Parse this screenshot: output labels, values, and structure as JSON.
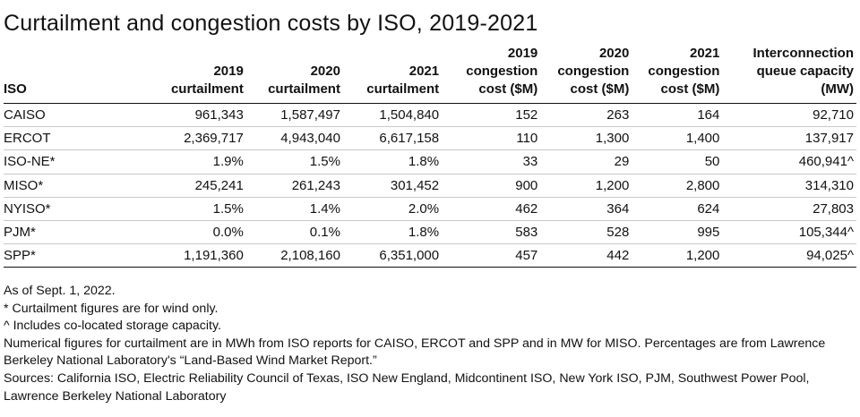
{
  "title": "Curtailment and congestion costs by ISO, 2019-2021",
  "table": {
    "headers": [
      "ISO",
      "2019\ncurtailment",
      "2020\ncurtailment",
      "2021\ncurtailment",
      "2019\ncongestion\ncost ($M)",
      "2020\ncongestion\ncost ($M)",
      "2021\ncongestion\ncost ($M)",
      "Interconnection\nqueue capacity\n(MW)"
    ],
    "rows": [
      [
        "CAISO",
        "961,343",
        "1,587,497",
        "1,504,840",
        "152",
        "263",
        "164",
        "92,710"
      ],
      [
        "ERCOT",
        "2,369,717",
        "4,943,040",
        "6,617,158",
        "110",
        "1,300",
        "1,400",
        "137,917"
      ],
      [
        "ISO-NE*",
        "1.9%",
        "1.5%",
        "1.8%",
        "33",
        "29",
        "50",
        "460,941^"
      ],
      [
        "MISO*",
        "245,241",
        "261,243",
        "301,452",
        "900",
        "1,200",
        "2,800",
        "314,310"
      ],
      [
        "NYISO*",
        "1.5%",
        "1.4%",
        "2.0%",
        "462",
        "364",
        "624",
        "27,803"
      ],
      [
        "PJM*",
        "0.0%",
        "0.1%",
        "1.8%",
        "583",
        "528",
        "995",
        "105,344^"
      ],
      [
        "SPP*",
        "1,191,360",
        "2,108,160",
        "6,351,000",
        "457",
        "442",
        "1,200",
        "94,025^"
      ]
    ]
  },
  "notes": [
    "As of Sept. 1, 2022.",
    "* Curtailment figures are for wind only.",
    "^ Includes co-located storage capacity.",
    "Numerical figures for curtailment are in MWh from ISO reports for CAISO, ERCOT and SPP and in MW for MISO. Percentages are from Lawrence Berkeley National Laboratory's “Land-Based Wind Market Report.”",
    "Sources: California ISO, Electric Reliability Council of Texas, ISO New England, Midcontinent ISO, New York ISO, PJM, Southwest Power Pool, Lawrence Berkeley National Laboratory"
  ]
}
